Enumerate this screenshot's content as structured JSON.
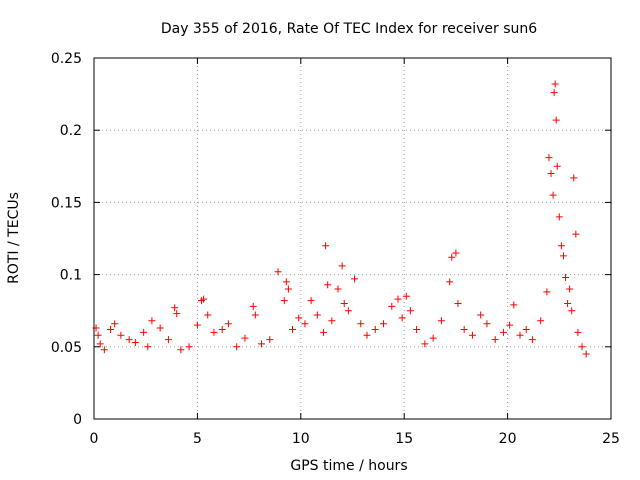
{
  "chart_data": {
    "type": "scatter",
    "title": "Day 355 of 2016, Rate Of TEC Index for receiver sun6",
    "xlabel": "GPS time / hours",
    "ylabel": "ROTI / TECUs",
    "xlim": [
      0,
      25
    ],
    "ylim": [
      0,
      0.25
    ],
    "x_ticks": [
      0,
      5,
      10,
      15,
      20,
      25
    ],
    "x_tick_labels": [
      "0",
      "5",
      "10",
      "15",
      "20",
      "25"
    ],
    "y_ticks": [
      0,
      0.05,
      0.1,
      0.15,
      0.2,
      0.25
    ],
    "y_tick_labels": [
      "0",
      "0.05",
      "0.1",
      "0.15",
      "0.2",
      "0.25"
    ],
    "grid": true,
    "marker": "+",
    "color": "#ff0000",
    "series": [
      {
        "name": "ROTI",
        "points": [
          [
            0.1,
            0.063
          ],
          [
            0.2,
            0.058
          ],
          [
            0.3,
            0.052
          ],
          [
            0.5,
            0.048
          ],
          [
            0.8,
            0.062
          ],
          [
            1.0,
            0.066
          ],
          [
            1.3,
            0.058
          ],
          [
            1.7,
            0.055
          ],
          [
            2.0,
            0.053
          ],
          [
            2.4,
            0.06
          ],
          [
            2.6,
            0.05
          ],
          [
            2.8,
            0.068
          ],
          [
            3.2,
            0.063
          ],
          [
            3.6,
            0.055
          ],
          [
            3.9,
            0.077
          ],
          [
            4.0,
            0.073
          ],
          [
            4.2,
            0.048
          ],
          [
            4.6,
            0.05
          ],
          [
            5.0,
            0.065
          ],
          [
            5.2,
            0.082
          ],
          [
            5.3,
            0.083
          ],
          [
            5.5,
            0.072
          ],
          [
            5.8,
            0.06
          ],
          [
            6.2,
            0.062
          ],
          [
            6.5,
            0.066
          ],
          [
            6.9,
            0.05
          ],
          [
            7.3,
            0.056
          ],
          [
            7.7,
            0.078
          ],
          [
            7.8,
            0.072
          ],
          [
            8.1,
            0.052
          ],
          [
            8.5,
            0.055
          ],
          [
            8.9,
            0.102
          ],
          [
            9.2,
            0.082
          ],
          [
            9.3,
            0.095
          ],
          [
            9.4,
            0.09
          ],
          [
            9.6,
            0.062
          ],
          [
            9.9,
            0.07
          ],
          [
            10.2,
            0.066
          ],
          [
            10.5,
            0.082
          ],
          [
            10.8,
            0.072
          ],
          [
            11.1,
            0.06
          ],
          [
            11.2,
            0.12
          ],
          [
            11.3,
            0.093
          ],
          [
            11.5,
            0.068
          ],
          [
            11.8,
            0.09
          ],
          [
            12.0,
            0.106
          ],
          [
            12.1,
            0.08
          ],
          [
            12.3,
            0.075
          ],
          [
            12.6,
            0.097
          ],
          [
            12.9,
            0.066
          ],
          [
            13.2,
            0.058
          ],
          [
            13.6,
            0.062
          ],
          [
            14.0,
            0.066
          ],
          [
            14.4,
            0.078
          ],
          [
            14.7,
            0.083
          ],
          [
            14.9,
            0.07
          ],
          [
            15.1,
            0.085
          ],
          [
            15.3,
            0.075
          ],
          [
            15.6,
            0.062
          ],
          [
            16.0,
            0.052
          ],
          [
            16.4,
            0.056
          ],
          [
            16.8,
            0.068
          ],
          [
            17.2,
            0.095
          ],
          [
            17.3,
            0.112
          ],
          [
            17.5,
            0.115
          ],
          [
            17.6,
            0.08
          ],
          [
            17.9,
            0.062
          ],
          [
            18.3,
            0.058
          ],
          [
            18.7,
            0.072
          ],
          [
            19.0,
            0.066
          ],
          [
            19.4,
            0.055
          ],
          [
            19.8,
            0.06
          ],
          [
            20.1,
            0.065
          ],
          [
            20.3,
            0.079
          ],
          [
            20.6,
            0.058
          ],
          [
            20.9,
            0.062
          ],
          [
            21.2,
            0.055
          ],
          [
            21.6,
            0.068
          ],
          [
            21.9,
            0.088
          ],
          [
            22.0,
            0.181
          ],
          [
            22.1,
            0.17
          ],
          [
            22.2,
            0.155
          ],
          [
            22.25,
            0.226
          ],
          [
            22.3,
            0.232
          ],
          [
            22.35,
            0.207
          ],
          [
            22.4,
            0.175
          ],
          [
            22.5,
            0.14
          ],
          [
            22.6,
            0.12
          ],
          [
            22.7,
            0.113
          ],
          [
            22.8,
            0.098
          ],
          [
            22.9,
            0.08
          ],
          [
            23.0,
            0.09
          ],
          [
            23.1,
            0.075
          ],
          [
            23.2,
            0.167
          ],
          [
            23.3,
            0.128
          ],
          [
            23.4,
            0.06
          ],
          [
            23.6,
            0.05
          ],
          [
            23.8,
            0.045
          ]
        ]
      }
    ]
  }
}
